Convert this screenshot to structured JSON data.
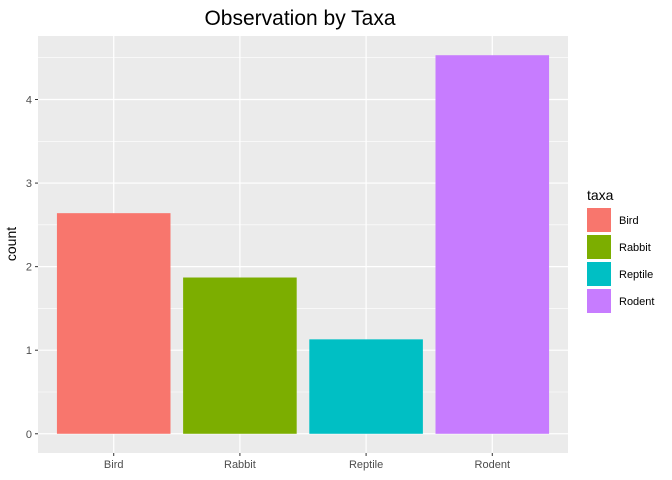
{
  "chart_data": {
    "type": "bar",
    "title": "Observation by Taxa",
    "xlabel": "",
    "ylabel": "count",
    "categories": [
      "Bird",
      "Rabbit",
      "Reptile",
      "Rodent"
    ],
    "values": [
      2.64,
      1.87,
      1.13,
      4.53
    ],
    "colors": [
      "#F8766D",
      "#7CAE00",
      "#00BFC4",
      "#C77CFF"
    ],
    "yticks": [
      0,
      1,
      2,
      3,
      4
    ],
    "ylim": [
      -0.23,
      4.76
    ],
    "grid": true,
    "panel_background": "#EBEBEB",
    "legend": {
      "title": "taxa",
      "position": "right",
      "entries": [
        "Bird",
        "Rabbit",
        "Reptile",
        "Rodent"
      ]
    }
  }
}
